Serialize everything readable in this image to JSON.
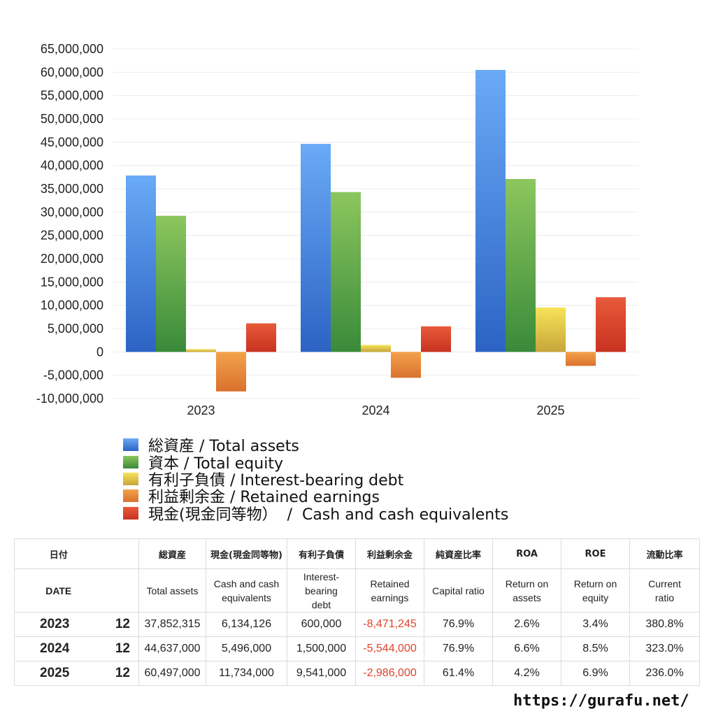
{
  "chart_data": {
    "type": "bar",
    "categories": [
      "2023",
      "2024",
      "2025"
    ],
    "series": [
      {
        "name": "総資産 / Total assets",
        "key": "blue",
        "values": [
          37852315,
          44637000,
          60497000
        ]
      },
      {
        "name": "資本 / Total equity",
        "key": "green",
        "values": [
          29200000,
          34300000,
          37100000
        ]
      },
      {
        "name": "有利子負債 / Interest-bearing debt",
        "key": "yellow",
        "values": [
          600000,
          1500000,
          9541000
        ]
      },
      {
        "name": "利益剰余金 / Retained earnings",
        "key": "orange",
        "values": [
          -8471245,
          -5544000,
          -2986000
        ]
      },
      {
        "name": "現金(現金同等物）  /  Cash and cash equivalents",
        "key": "red",
        "values": [
          6134126,
          5496000,
          11734000
        ]
      }
    ],
    "ylim": [
      -10000000,
      65000000
    ],
    "ytick_step": 5000000,
    "ytick_labels": [
      "65,000,000",
      "60,000,000",
      "55,000,000",
      "50,000,000",
      "45,000,000",
      "40,000,000",
      "35,000,000",
      "30,000,000",
      "25,000,000",
      "20,000,000",
      "15,000,000",
      "10,000,000",
      "5,000,000",
      "0",
      "-5,000,000",
      "-10,000,000"
    ],
    "grid": true,
    "legend_position": "bottom"
  },
  "colors": {
    "blue": [
      "#6aaaf7",
      "#2c63c4"
    ],
    "green": [
      "#8cc65e",
      "#3a8a3a"
    ],
    "yellow": [
      "#f7e35a",
      "#c7a53a"
    ],
    "orange": [
      "#f4a24a",
      "#d9712e"
    ],
    "red": [
      "#e85a3a",
      "#c73220"
    ],
    "negative_text": "#e0422a"
  },
  "table": {
    "header_jp": {
      "date": "日付",
      "total_assets": "総資産",
      "cash": "現金(現金同等物)",
      "debt": "有利子負債",
      "retained": "利益剰余金",
      "capital_ratio": "純資産比率",
      "roa": "ROA",
      "roe": "ROE",
      "current_ratio": "流動比率"
    },
    "header_en": {
      "date": "DATE",
      "total_assets": "Total assets",
      "cash_1": "Cash and cash",
      "cash_2": "equivalents",
      "debt_1": "Interest-",
      "debt_2": "bearing",
      "debt_3": "debt",
      "retained_1": "Retained",
      "retained_2": "earnings",
      "capital_ratio": "Capital ratio",
      "roa_1": "Return on",
      "roa_2": "assets",
      "roe_1": "Return on",
      "roe_2": "equity",
      "current_1": "Current",
      "current_2": "ratio"
    },
    "rows": [
      {
        "year": "2023",
        "month": "12",
        "total_assets": "37,852,315",
        "cash": "6,134,126",
        "debt": "600,000",
        "retained": "-8,471,245",
        "capital_ratio": "76.9%",
        "roa": "2.6%",
        "roe": "3.4%",
        "current_ratio": "380.8%"
      },
      {
        "year": "2024",
        "month": "12",
        "total_assets": "44,637,000",
        "cash": "5,496,000",
        "debt": "1,500,000",
        "retained": "-5,544,000",
        "capital_ratio": "76.9%",
        "roa": "6.6%",
        "roe": "8.5%",
        "current_ratio": "323.0%"
      },
      {
        "year": "2025",
        "month": "12",
        "total_assets": "60,497,000",
        "cash": "11,734,000",
        "debt": "9,541,000",
        "retained": "-2,986,000",
        "capital_ratio": "61.4%",
        "roa": "4.2%",
        "roe": "6.9%",
        "current_ratio": "236.0%"
      }
    ]
  },
  "footer": {
    "url": "https://gurafu.net/"
  }
}
